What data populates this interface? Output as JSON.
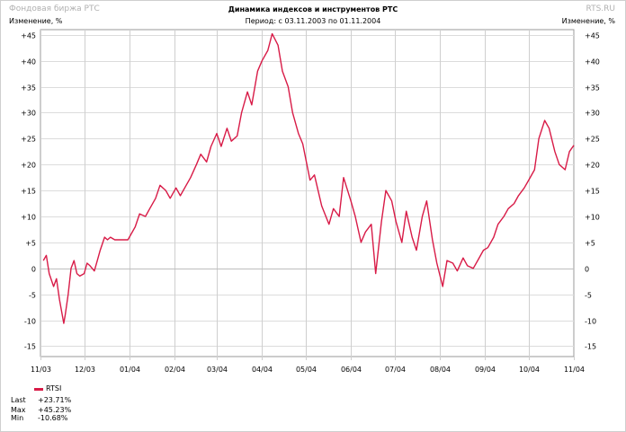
{
  "header": {
    "brand_left": "Фондовая биржа РТС",
    "brand_right": "RTS.RU",
    "unit_left": "Изменение, %",
    "unit_right": "Изменение, %",
    "title": "Динамика индексов и инструментов РТС",
    "subtitle": "Период: с 03.11.2003 по 01.11.2004"
  },
  "chart_data": {
    "type": "line",
    "title": "Динамика индексов и инструментов РТС",
    "subtitle": "Период: с 03.11.2003 по 01.11.2004",
    "ylabel": "Изменение, %",
    "ylim": [
      -17,
      46
    ],
    "xlim": [
      "2003-11-01",
      "2004-11-01"
    ],
    "x_tick_labels": [
      "11/03",
      "12/03",
      "01/04",
      "02/04",
      "03/04",
      "04/04",
      "05/04",
      "06/04",
      "07/04",
      "08/04",
      "09/04",
      "10/04",
      "11/04"
    ],
    "y_tick_values": [
      -15,
      -10,
      -5,
      0,
      5,
      10,
      15,
      20,
      25,
      30,
      35,
      40,
      45
    ],
    "y_tick_labels": [
      "-15",
      "-10",
      "-5",
      "0",
      "+5",
      "+10",
      "+15",
      "+20",
      "+25",
      "+30",
      "+35",
      "+40",
      "+45"
    ],
    "grid": true,
    "series": [
      {
        "name": "RTSI",
        "color": "#d81b47",
        "x": [
          "2003-11-03",
          "2003-11-05",
          "2003-11-07",
          "2003-11-10",
          "2003-11-12",
          "2003-11-14",
          "2003-11-17",
          "2003-11-18",
          "2003-11-20",
          "2003-11-22",
          "2003-11-24",
          "2003-11-26",
          "2003-11-28",
          "2003-12-01",
          "2003-12-03",
          "2003-12-05",
          "2003-12-08",
          "2003-12-10",
          "2003-12-12",
          "2003-12-15",
          "2003-12-17",
          "2003-12-19",
          "2003-12-22",
          "2003-12-24",
          "2003-12-26",
          "2003-12-29",
          "2003-12-31",
          "2004-01-05",
          "2004-01-08",
          "2004-01-12",
          "2004-01-15",
          "2004-01-19",
          "2004-01-22",
          "2004-01-26",
          "2004-01-29",
          "2004-02-02",
          "2004-02-05",
          "2004-02-09",
          "2004-02-12",
          "2004-02-16",
          "2004-02-19",
          "2004-02-23",
          "2004-02-26",
          "2004-03-01",
          "2004-03-04",
          "2004-03-08",
          "2004-03-11",
          "2004-03-15",
          "2004-03-18",
          "2004-03-22",
          "2004-03-25",
          "2004-03-29",
          "2004-04-01",
          "2004-04-05",
          "2004-04-08",
          "2004-04-12",
          "2004-04-15",
          "2004-04-19",
          "2004-04-22",
          "2004-04-26",
          "2004-04-29",
          "2004-05-04",
          "2004-05-07",
          "2004-05-12",
          "2004-05-17",
          "2004-05-20",
          "2004-05-24",
          "2004-05-27",
          "2004-06-01",
          "2004-06-04",
          "2004-06-08",
          "2004-06-11",
          "2004-06-15",
          "2004-06-18",
          "2004-06-22",
          "2004-06-25",
          "2004-06-29",
          "2004-07-02",
          "2004-07-06",
          "2004-07-09",
          "2004-07-13",
          "2004-07-16",
          "2004-07-20",
          "2004-07-23",
          "2004-07-27",
          "2004-07-30",
          "2004-08-03",
          "2004-08-06",
          "2004-08-10",
          "2004-08-13",
          "2004-08-17",
          "2004-08-20",
          "2004-08-24",
          "2004-08-27",
          "2004-08-31",
          "2004-09-03",
          "2004-09-07",
          "2004-09-10",
          "2004-09-14",
          "2004-09-17",
          "2004-09-21",
          "2004-09-24",
          "2004-09-28",
          "2004-10-01",
          "2004-10-05",
          "2004-10-08",
          "2004-10-12",
          "2004-10-15",
          "2004-10-19",
          "2004-10-22",
          "2004-10-26",
          "2004-10-29",
          "2004-11-01"
        ],
        "values": [
          1.5,
          2.5,
          -1.0,
          -3.5,
          -2.0,
          -6.0,
          -10.6,
          -9.0,
          -5.0,
          0.0,
          1.5,
          -1.0,
          -1.5,
          -1.0,
          1.0,
          0.5,
          -0.5,
          1.5,
          3.5,
          6.0,
          5.5,
          6.0,
          5.5,
          5.5,
          5.5,
          5.5,
          5.5,
          8.0,
          10.5,
          10.0,
          11.5,
          13.5,
          16.0,
          15.0,
          13.5,
          15.5,
          14.0,
          16.0,
          17.5,
          20.0,
          22.0,
          20.5,
          23.5,
          26.0,
          23.5,
          27.0,
          24.5,
          25.5,
          30.0,
          34.0,
          31.5,
          38.0,
          40.0,
          42.0,
          45.2,
          43.0,
          38.0,
          35.0,
          30.0,
          26.0,
          24.0,
          17.0,
          18.0,
          12.0,
          8.5,
          11.5,
          10.0,
          17.5,
          13.0,
          10.0,
          5.0,
          7.0,
          8.5,
          -1.0,
          9.0,
          15.0,
          13.0,
          9.0,
          5.0,
          11.0,
          6.0,
          3.5,
          10.0,
          13.0,
          5.5,
          1.0,
          -3.5,
          1.5,
          1.0,
          -0.5,
          2.0,
          0.5,
          0.0,
          1.5,
          3.5,
          4.0,
          6.0,
          8.5,
          10.0,
          11.5,
          12.5,
          14.0,
          15.5,
          17.0,
          19.0,
          25.0,
          28.5,
          27.0,
          22.5,
          20.0,
          19.0,
          22.5,
          23.7
        ]
      }
    ],
    "legend": "bottom-left"
  },
  "stats": {
    "legend_label": "RTSI",
    "last_label": "Last",
    "last_value": "+23.71%",
    "max_label": "Max",
    "max_value": "+45.23%",
    "min_label": "Min",
    "min_value": "-10.68%"
  }
}
